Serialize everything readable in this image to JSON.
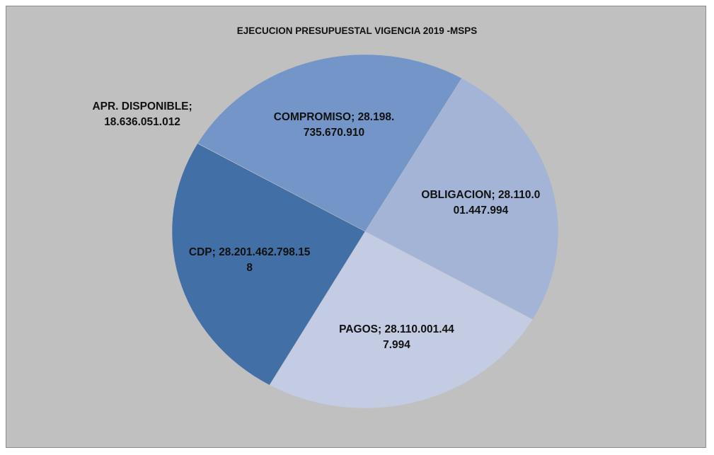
{
  "chart_data": {
    "type": "pie",
    "title": "EJECUCION PRESUPUESTAL VIGENCIA 2019 -MSPS",
    "categories": [
      "OBLIGACION",
      "PAGOS",
      "CDP",
      "APR. DISPONIBLE",
      "COMPROMISO"
    ],
    "values": [
      28110001447994,
      28110001447994,
      28201462798158,
      18636051012,
      28198735670910
    ],
    "value_labels": [
      "28.110.001.447.994",
      "28.110.001.447.994",
      "28.201.462.798.158",
      "18.636.051.012",
      "28.198.735.670.910"
    ],
    "label_separator": ";",
    "colors": [
      "#a3b4d6",
      "#c3cce3",
      "#416fa6",
      "#5f86bd",
      "#7395c8"
    ],
    "start_angle": 30
  }
}
